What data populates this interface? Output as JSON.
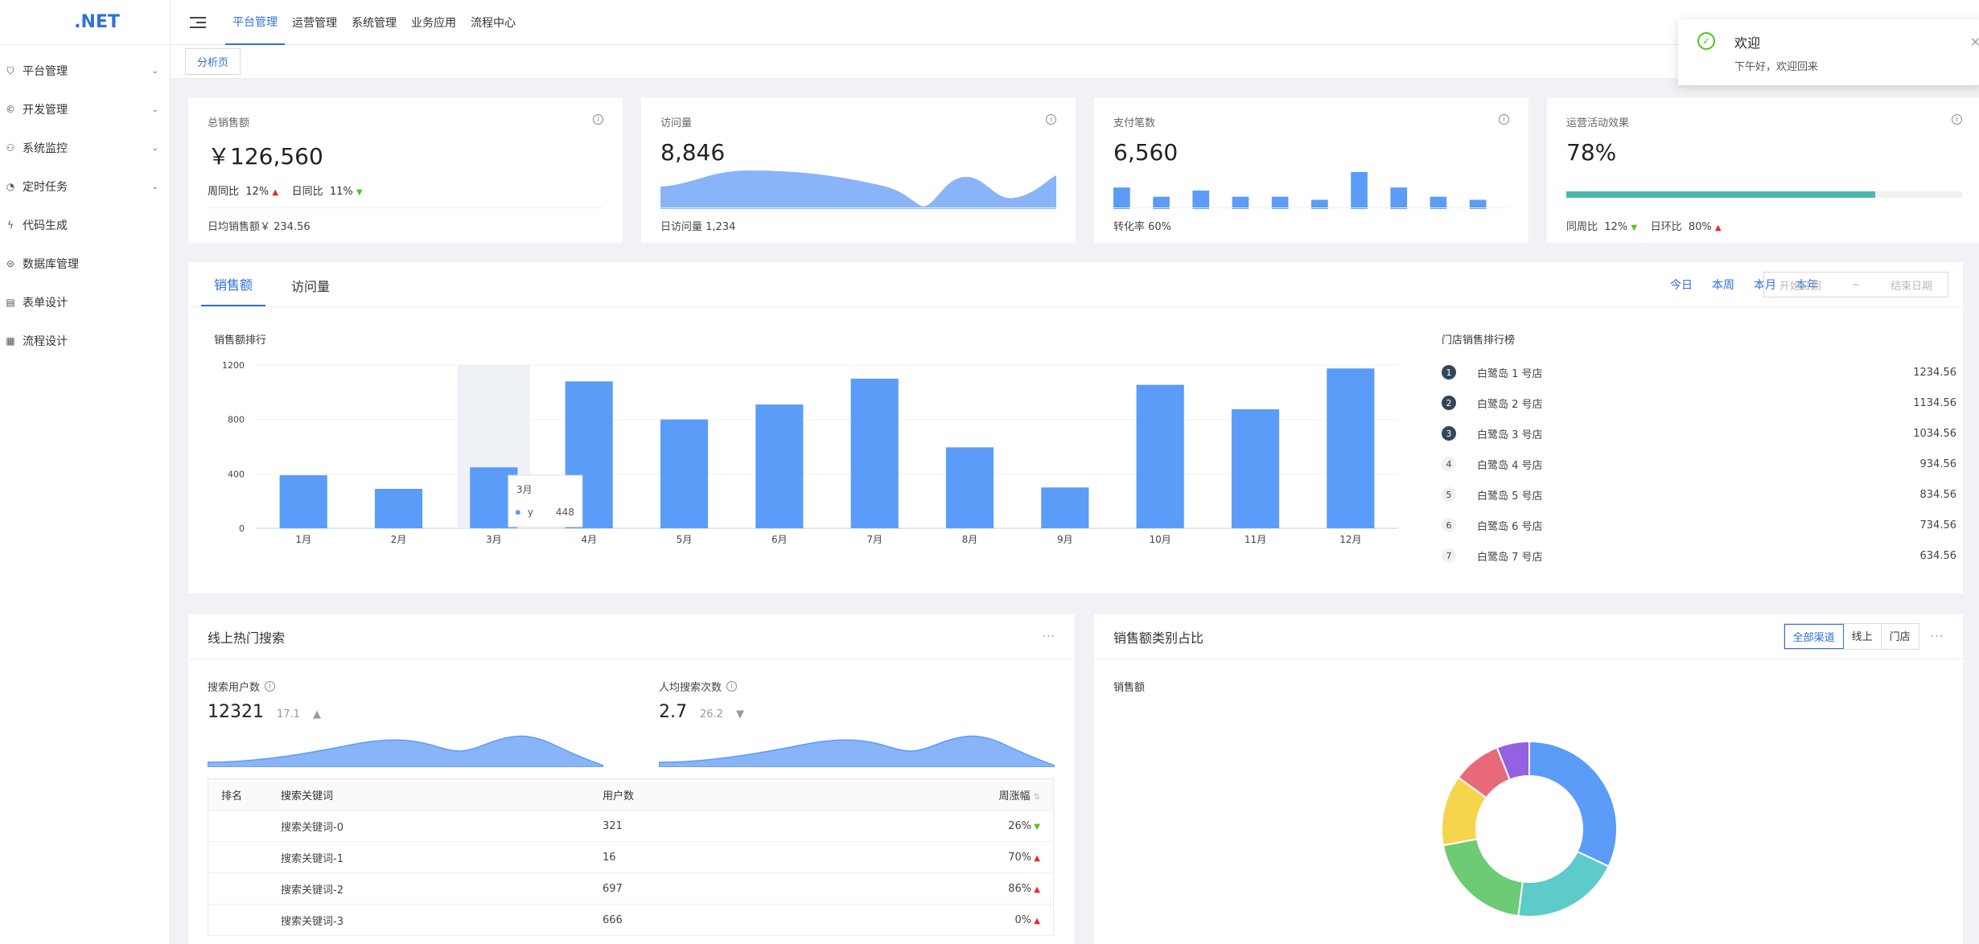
{
  "app": {
    "logo": ".NET"
  },
  "sidebar": {
    "items": [
      {
        "label": "平台管理",
        "icon": "shield-icon",
        "arrow": true
      },
      {
        "label": "开发管理",
        "icon": "dev-icon",
        "arrow": true
      },
      {
        "label": "系统监控",
        "icon": "monitor-icon",
        "arrow": true
      },
      {
        "label": "定时任务",
        "icon": "timer-icon",
        "arrow": true
      },
      {
        "label": "代码生成",
        "icon": "code-icon",
        "arrow": false
      },
      {
        "label": "数据库管理",
        "icon": "database-icon",
        "arrow": false
      },
      {
        "label": "表单设计",
        "icon": "form-icon",
        "arrow": false
      },
      {
        "label": "流程设计",
        "icon": "flow-icon",
        "arrow": false
      }
    ]
  },
  "header": {
    "tabs": [
      "平台管理",
      "运营管理",
      "系统管理",
      "业务应用",
      "流程中心"
    ],
    "active_tab": "平台管理"
  },
  "tabsbar": {
    "page_tab": "分析页"
  },
  "stats": {
    "sales": {
      "title": "总销售额",
      "value": "￥126,560",
      "wow_label": "周同比",
      "wow": "12%",
      "dod_label": "日同比",
      "dod": "11%",
      "footer": "日均销售额￥ 234.56"
    },
    "visits": {
      "title": "访问量",
      "value": "8,846",
      "footer": "日访问量 1,234"
    },
    "payments": {
      "title": "支付笔数",
      "value": "6,560",
      "footer": "转化率 60%",
      "bars": [
        7,
        4,
        6,
        4,
        4,
        3,
        12,
        7,
        4,
        3
      ]
    },
    "ops": {
      "title": "运营活动效果",
      "value": "78%",
      "progress": 0.78,
      "wow_label": "同周比",
      "wow": "12%",
      "dod_label": "日环比",
      "dod": "80%"
    }
  },
  "sales_panel": {
    "tabs": [
      "销售额",
      "访问量"
    ],
    "range_links": [
      "今日",
      "本周",
      "本月",
      "本年"
    ],
    "start_placeholder": "开始日期",
    "end_placeholder": "结束日期",
    "range_sep": "~",
    "chart_title": "销售额排行",
    "rank_title": "门店销售排行榜",
    "rank": [
      {
        "n": "1",
        "name": "白鹭岛 1 号店",
        "value": "1234.56"
      },
      {
        "n": "2",
        "name": "白鹭岛 2 号店",
        "value": "1134.56"
      },
      {
        "n": "3",
        "name": "白鹭岛 3 号店",
        "value": "1034.56"
      },
      {
        "n": "4",
        "name": "白鹭岛 4 号店",
        "value": "934.56"
      },
      {
        "n": "5",
        "name": "白鹭岛 5 号店",
        "value": "834.56"
      },
      {
        "n": "6",
        "name": "白鹭岛 6 号店",
        "value": "734.56"
      },
      {
        "n": "7",
        "name": "白鹭岛 7 号店",
        "value": "634.56"
      }
    ],
    "tooltip": {
      "title": "3月",
      "series": "y",
      "value": "448"
    }
  },
  "chart_data": [
    {
      "type": "bar",
      "title": "销售额排行",
      "categories": [
        "1月",
        "2月",
        "3月",
        "4月",
        "5月",
        "6月",
        "7月",
        "8月",
        "9月",
        "10月",
        "11月",
        "12月"
      ],
      "series": [
        {
          "name": "y",
          "values": [
            390,
            290,
            448,
            1080,
            800,
            910,
            1100,
            595,
            300,
            1055,
            875,
            1175
          ]
        }
      ],
      "yticks": [
        0,
        400,
        800,
        1200
      ],
      "ylim": [
        0,
        1200
      ],
      "highlight_index": 2,
      "color": "#5b9cf8"
    },
    {
      "type": "pie",
      "title": "销售额",
      "values": [
        32,
        20,
        20,
        13,
        9,
        6
      ],
      "colors": [
        "#5b9cf8",
        "#5ccbca",
        "#6ecb75",
        "#f6d44c",
        "#e86a7a",
        "#9461e0"
      ]
    }
  ],
  "search_panel": {
    "title": "线上热门搜索",
    "more": "···",
    "users_label": "搜索用户数",
    "users_value": "12321",
    "users_delta": "17.1",
    "avg_label": "人均搜索次数",
    "avg_value": "2.7",
    "avg_delta": "26.2",
    "columns": [
      "排名",
      "搜索关键词",
      "用户数",
      "周涨幅"
    ],
    "rows": [
      {
        "rank": "",
        "keyword": "搜索关键词-0",
        "users": "321",
        "change": "26%",
        "dir": "down"
      },
      {
        "rank": "",
        "keyword": "搜索关键词-1",
        "users": "16",
        "change": "70%",
        "dir": "up"
      },
      {
        "rank": "",
        "keyword": "搜索关键词-2",
        "users": "697",
        "change": "86%",
        "dir": "up"
      },
      {
        "rank": "",
        "keyword": "搜索关键词-3",
        "users": "666",
        "change": "0%",
        "dir": "up"
      }
    ]
  },
  "category_panel": {
    "title": "销售额类别占比",
    "segments": [
      "全部渠道",
      "线上",
      "门店"
    ],
    "active_segment": "全部渠道",
    "more": "···",
    "subtitle": "销售额"
  },
  "notification": {
    "title": "欢迎",
    "desc": "下午好，欢迎回来",
    "close": "×"
  },
  "colors": {
    "accent": "#2f6fe0",
    "up": "#f5222d",
    "down": "#52c41a",
    "progress": "#4db6ac"
  }
}
